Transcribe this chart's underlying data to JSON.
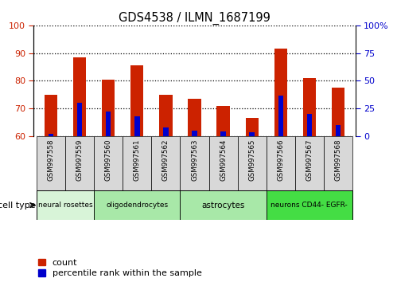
{
  "title": "GDS4538 / ILMN_1687199",
  "samples": [
    "GSM997558",
    "GSM997559",
    "GSM997560",
    "GSM997561",
    "GSM997562",
    "GSM997563",
    "GSM997564",
    "GSM997565",
    "GSM997566",
    "GSM997567",
    "GSM997568"
  ],
  "count_values": [
    75.0,
    88.5,
    80.5,
    85.5,
    75.0,
    73.5,
    71.0,
    66.5,
    91.5,
    81.0,
    77.5
  ],
  "percentile_values": [
    2.0,
    30.5,
    22.0,
    18.0,
    8.0,
    5.0,
    4.0,
    3.5,
    37.0,
    20.0,
    10.0
  ],
  "ylim_left": [
    60,
    100
  ],
  "yticks_left": [
    60,
    70,
    80,
    90,
    100
  ],
  "ylim_right": [
    0,
    100
  ],
  "yticks_right": [
    0,
    25,
    50,
    75,
    100
  ],
  "right_yticklabels": [
    "0",
    "25",
    "50",
    "75",
    "100%"
  ],
  "bar_color": "#cc2200",
  "pct_color": "#0000cc",
  "cell_groups": [
    {
      "label": "neural rosettes",
      "start": 0,
      "end": 2,
      "color": "#d8f4d8"
    },
    {
      "label": "oligodendrocytes",
      "start": 2,
      "end": 5,
      "color": "#a8e8a8"
    },
    {
      "label": "astrocytes",
      "start": 5,
      "end": 8,
      "color": "#a8e8a8"
    },
    {
      "label": "neurons CD44- EGFR-",
      "start": 8,
      "end": 11,
      "color": "#44dd44"
    }
  ],
  "legend_count_label": "count",
  "legend_pct_label": "percentile rank within the sample",
  "cell_type_label": "cell type",
  "bg_color": "#ffffff",
  "tick_color_left": "#cc2200",
  "tick_color_right": "#0000cc",
  "bar_width": 0.45,
  "pct_bar_width": 0.18,
  "base_value": 60,
  "xtick_bg_color": "#d8d8d8",
  "plot_bg_color": "#ffffff",
  "grid_linestyle": "dotted",
  "grid_color": "#000000",
  "grid_linewidth": 0.9
}
